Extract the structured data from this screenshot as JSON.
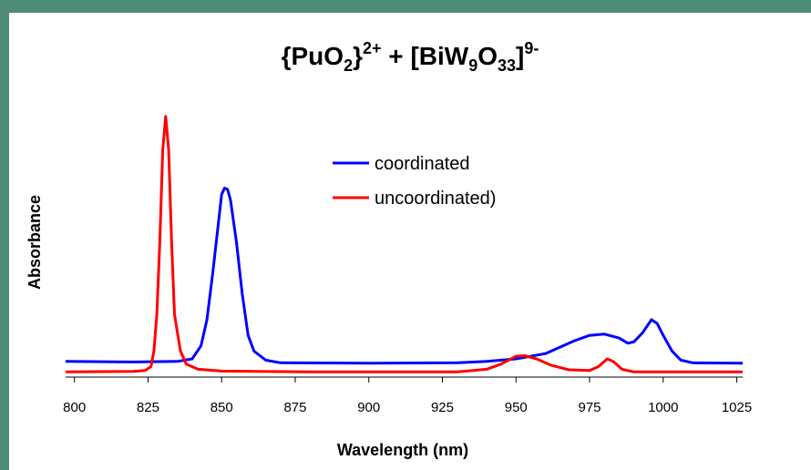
{
  "chart_data": {
    "type": "line",
    "title": {
      "part1": "{PuO",
      "sub1": "2",
      "part2": "}",
      "sup1": "2+",
      "part3": " + [BiW",
      "sub2": "9",
      "part4": "O",
      "sub3": "33",
      "part5": "]",
      "sup2": "9-"
    },
    "xlabel": "Wavelength (nm)",
    "ylabel": "Absorbance",
    "xlim": [
      797,
      1027
    ],
    "ylim": [
      -0.02,
      1.0
    ],
    "xticks": [
      800,
      825,
      850,
      875,
      900,
      925,
      950,
      975,
      1000,
      1025
    ],
    "grid": false,
    "legend_position": "top-center",
    "series": [
      {
        "name": "coordinated",
        "color": "#0000ff",
        "points": [
          [
            797,
            0.04
          ],
          [
            820,
            0.038
          ],
          [
            835,
            0.04
          ],
          [
            840,
            0.05
          ],
          [
            843,
            0.1
          ],
          [
            845,
            0.2
          ],
          [
            847,
            0.38
          ],
          [
            849,
            0.58
          ],
          [
            850,
            0.68
          ],
          [
            851,
            0.705
          ],
          [
            852,
            0.7
          ],
          [
            853,
            0.66
          ],
          [
            855,
            0.5
          ],
          [
            857,
            0.3
          ],
          [
            859,
            0.14
          ],
          [
            861,
            0.08
          ],
          [
            865,
            0.045
          ],
          [
            870,
            0.035
          ],
          [
            900,
            0.033
          ],
          [
            930,
            0.035
          ],
          [
            940,
            0.04
          ],
          [
            950,
            0.05
          ],
          [
            960,
            0.07
          ],
          [
            970,
            0.12
          ],
          [
            975,
            0.14
          ],
          [
            980,
            0.145
          ],
          [
            985,
            0.13
          ],
          [
            988,
            0.11
          ],
          [
            990,
            0.115
          ],
          [
            993,
            0.15
          ],
          [
            996,
            0.2
          ],
          [
            998,
            0.185
          ],
          [
            1000,
            0.14
          ],
          [
            1003,
            0.08
          ],
          [
            1006,
            0.045
          ],
          [
            1010,
            0.035
          ],
          [
            1027,
            0.033
          ]
        ]
      },
      {
        "name": "uncoordinated)",
        "color": "#ff0000",
        "points": [
          [
            797,
            0.0
          ],
          [
            820,
            0.002
          ],
          [
            824,
            0.005
          ],
          [
            826,
            0.02
          ],
          [
            827,
            0.08
          ],
          [
            828,
            0.22
          ],
          [
            829,
            0.5
          ],
          [
            830,
            0.85
          ],
          [
            831,
            0.98
          ],
          [
            832,
            0.85
          ],
          [
            833,
            0.5
          ],
          [
            834,
            0.22
          ],
          [
            836,
            0.08
          ],
          [
            838,
            0.03
          ],
          [
            842,
            0.01
          ],
          [
            850,
            0.003
          ],
          [
            880,
            0.0
          ],
          [
            930,
            0.0
          ],
          [
            940,
            0.01
          ],
          [
            945,
            0.03
          ],
          [
            950,
            0.06
          ],
          [
            953,
            0.062
          ],
          [
            957,
            0.05
          ],
          [
            962,
            0.025
          ],
          [
            968,
            0.008
          ],
          [
            975,
            0.005
          ],
          [
            978,
            0.02
          ],
          [
            981,
            0.05
          ],
          [
            983,
            0.04
          ],
          [
            986,
            0.01
          ],
          [
            990,
            0.0
          ],
          [
            1027,
            0.0
          ]
        ]
      }
    ]
  }
}
